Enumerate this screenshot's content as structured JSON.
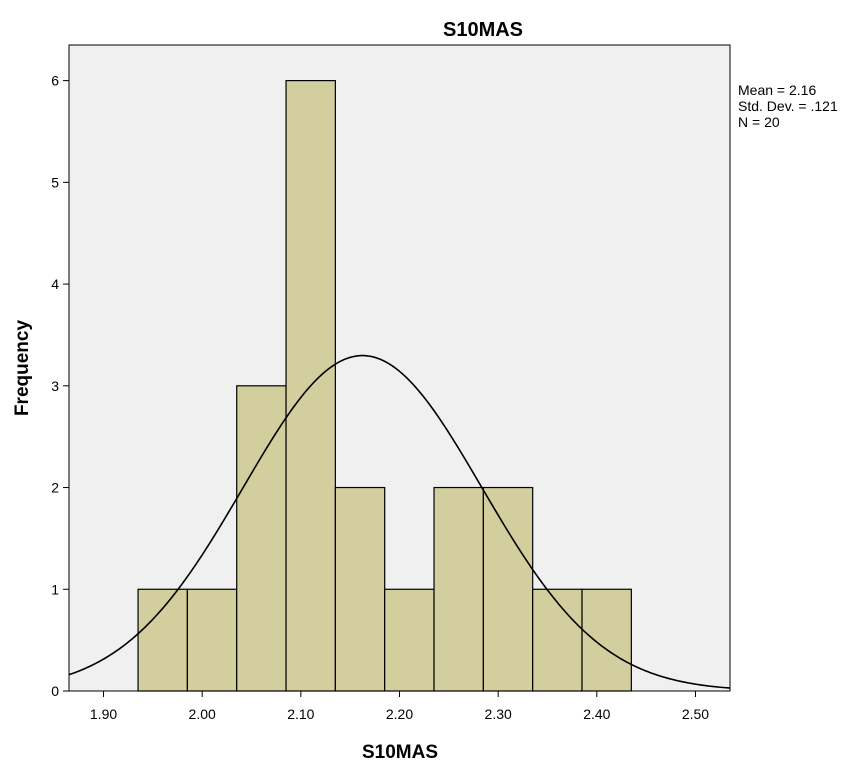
{
  "chart_data": {
    "type": "bar",
    "subtype": "histogram",
    "title": "S10MAS",
    "xlabel": "S10MAS",
    "ylabel": "Frequency",
    "xlim": [
      1.865,
      2.535
    ],
    "ylim": [
      0,
      6.35
    ],
    "xticks": [
      1.9,
      2.0,
      2.1,
      2.2,
      2.3,
      2.4,
      2.5
    ],
    "xtick_labels": [
      "1.90",
      "2.00",
      "2.10",
      "2.20",
      "2.30",
      "2.40",
      "2.50"
    ],
    "yticks": [
      0,
      1,
      2,
      3,
      4,
      5,
      6
    ],
    "ytick_labels": [
      "0",
      "1",
      "2",
      "3",
      "4",
      "5",
      "6"
    ],
    "bin_width": 0.05,
    "bins": [
      {
        "start": 1.935,
        "end": 1.985,
        "count": 1
      },
      {
        "start": 1.985,
        "end": 2.035,
        "count": 1
      },
      {
        "start": 2.035,
        "end": 2.085,
        "count": 3
      },
      {
        "start": 2.085,
        "end": 2.135,
        "count": 6
      },
      {
        "start": 2.135,
        "end": 2.185,
        "count": 2
      },
      {
        "start": 2.185,
        "end": 2.235,
        "count": 1
      },
      {
        "start": 2.235,
        "end": 2.285,
        "count": 2
      },
      {
        "start": 2.285,
        "end": 2.335,
        "count": 2
      },
      {
        "start": 2.335,
        "end": 2.385,
        "count": 1
      },
      {
        "start": 2.385,
        "end": 2.435,
        "count": 1
      }
    ],
    "normal_curve": {
      "mean": 2.1625,
      "std_dev": 0.121,
      "n": 20
    },
    "stats_text": [
      "Mean = 2.16",
      "Std. Dev. = .121",
      "N = 20"
    ],
    "grid": false,
    "colors": {
      "bar_fill": "#d3ce9e",
      "bar_stroke": "#000000",
      "plot_background": "#f0f0f0",
      "curve": "#000000"
    }
  }
}
